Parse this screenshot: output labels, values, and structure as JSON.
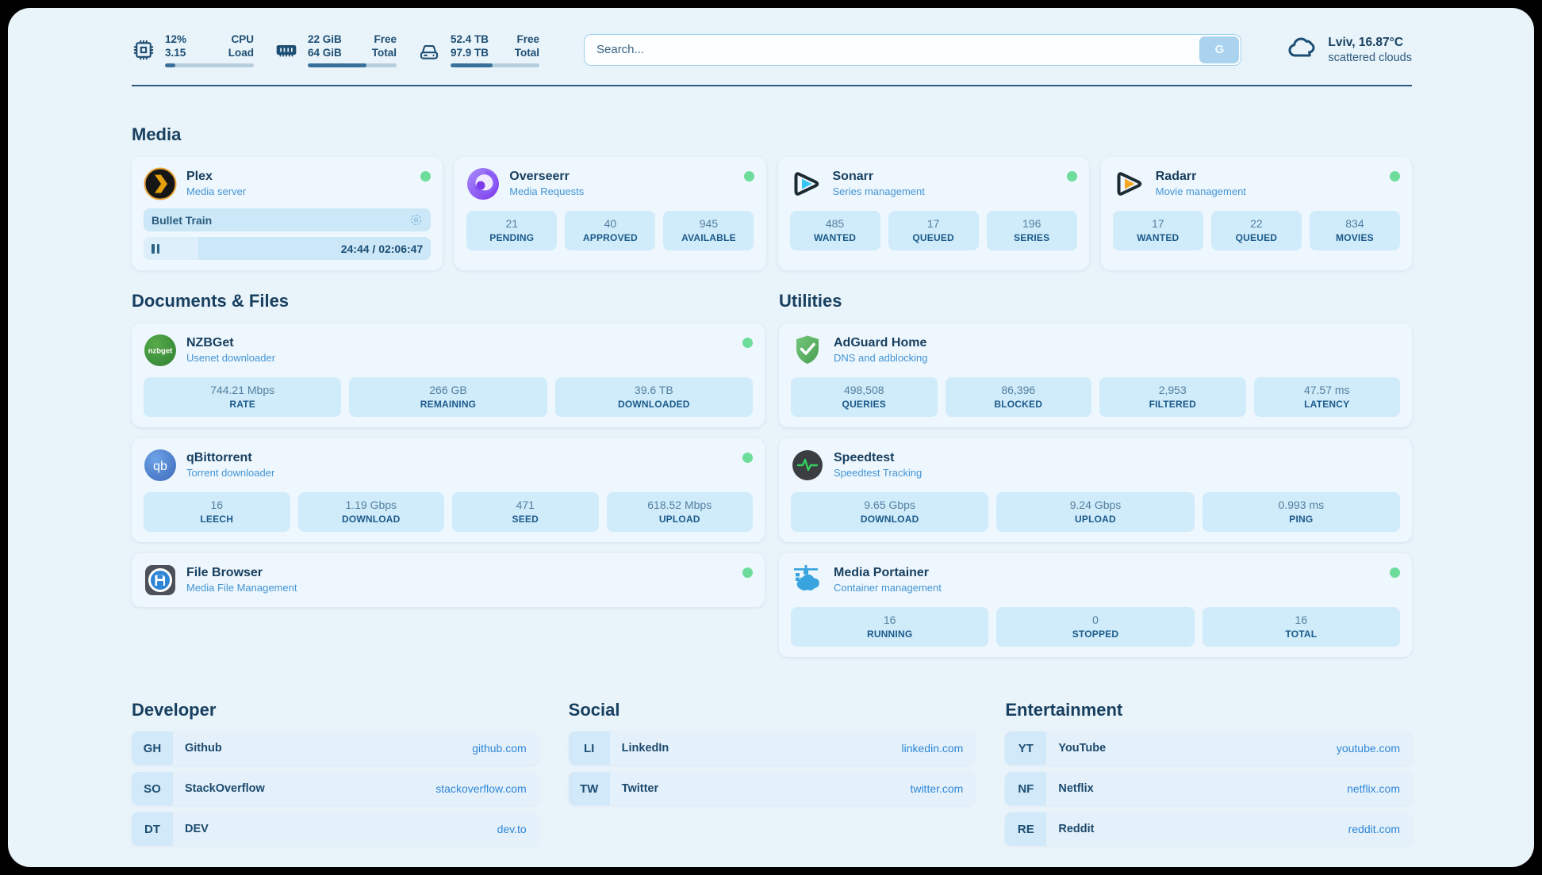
{
  "topbar": {
    "metrics": [
      {
        "icon": "cpu-icon",
        "values": [
          "12%",
          "3.15"
        ],
        "labels": [
          "CPU",
          "Load"
        ],
        "progress_pct": 12
      },
      {
        "icon": "ram-icon",
        "values": [
          "22 GiB",
          "64 GiB"
        ],
        "labels": [
          "Free",
          "Total"
        ],
        "progress_pct": 66
      },
      {
        "icon": "disk-icon",
        "values": [
          "52.4 TB",
          "97.9 TB"
        ],
        "labels": [
          "Free",
          "Total"
        ],
        "progress_pct": 47
      }
    ],
    "search": {
      "placeholder": "Search...",
      "button_label": "G"
    },
    "weather": {
      "location": "Lviv, 16.87°C",
      "condition": "scattered clouds"
    }
  },
  "sections": {
    "media": {
      "title": "Media",
      "apps": {
        "plex": {
          "name": "Plex",
          "subtitle": "Media server",
          "status": "online",
          "now_playing": "Bullet Train",
          "time_display": "24:44 / 02:06:47",
          "progress_pct": 19
        },
        "overseerr": {
          "name": "Overseerr",
          "subtitle": "Media Requests",
          "status": "online",
          "stats": [
            {
              "value": "21",
              "label": "PENDING"
            },
            {
              "value": "40",
              "label": "APPROVED"
            },
            {
              "value": "945",
              "label": "AVAILABLE"
            }
          ]
        },
        "sonarr": {
          "name": "Sonarr",
          "subtitle": "Series management",
          "status": "online",
          "stats": [
            {
              "value": "485",
              "label": "WANTED"
            },
            {
              "value": "17",
              "label": "QUEUED"
            },
            {
              "value": "196",
              "label": "SERIES"
            }
          ]
        },
        "radarr": {
          "name": "Radarr",
          "subtitle": "Movie management",
          "status": "online",
          "stats": [
            {
              "value": "17",
              "label": "WANTED"
            },
            {
              "value": "22",
              "label": "QUEUED"
            },
            {
              "value": "834",
              "label": "MOVIES"
            }
          ]
        }
      }
    },
    "documents": {
      "title": "Documents & Files",
      "apps": {
        "nzbget": {
          "name": "NZBGet",
          "subtitle": "Usenet downloader",
          "status": "online",
          "stats": [
            {
              "value": "744.21 Mbps",
              "label": "RATE"
            },
            {
              "value": "266 GB",
              "label": "REMAINING"
            },
            {
              "value": "39.6 TB",
              "label": "DOWNLOADED"
            }
          ]
        },
        "qbittorrent": {
          "name": "qBittorrent",
          "subtitle": "Torrent downloader",
          "status": "online",
          "stats": [
            {
              "value": "16",
              "label": "LEECH"
            },
            {
              "value": "1.19 Gbps",
              "label": "DOWNLOAD"
            },
            {
              "value": "471",
              "label": "SEED"
            },
            {
              "value": "618.52 Mbps",
              "label": "UPLOAD"
            }
          ]
        },
        "filebrowser": {
          "name": "File Browser",
          "subtitle": "Media File Management",
          "status": "online"
        }
      }
    },
    "utilities": {
      "title": "Utilities",
      "apps": {
        "adguard": {
          "name": "AdGuard Home",
          "subtitle": "DNS and adblocking",
          "stats": [
            {
              "value": "498,508",
              "label": "QUERIES"
            },
            {
              "value": "86,396",
              "label": "BLOCKED"
            },
            {
              "value": "2,953",
              "label": "FILTERED"
            },
            {
              "value": "47.57 ms",
              "label": "LATENCY"
            }
          ]
        },
        "speedtest": {
          "name": "Speedtest",
          "subtitle": "Speedtest Tracking",
          "stats": [
            {
              "value": "9.65 Gbps",
              "label": "DOWNLOAD"
            },
            {
              "value": "9.24 Gbps",
              "label": "UPLOAD"
            },
            {
              "value": "0.993 ms",
              "label": "PING"
            }
          ]
        },
        "portainer": {
          "name": "Media Portainer",
          "subtitle": "Container management",
          "status": "online",
          "stats": [
            {
              "value": "16",
              "label": "RUNNING"
            },
            {
              "value": "0",
              "label": "STOPPED"
            },
            {
              "value": "16",
              "label": "TOTAL"
            }
          ]
        }
      }
    },
    "bookmarks": [
      {
        "title": "Developer",
        "items": [
          {
            "abbr": "GH",
            "name": "Github",
            "url": "github.com"
          },
          {
            "abbr": "SO",
            "name": "StackOverflow",
            "url": "stackoverflow.com"
          },
          {
            "abbr": "DT",
            "name": "DEV",
            "url": "dev.to"
          }
        ]
      },
      {
        "title": "Social",
        "items": [
          {
            "abbr": "LI",
            "name": "LinkedIn",
            "url": "linkedin.com"
          },
          {
            "abbr": "TW",
            "name": "Twitter",
            "url": "twitter.com"
          }
        ]
      },
      {
        "title": "Entertainment",
        "items": [
          {
            "abbr": "YT",
            "name": "YouTube",
            "url": "youtube.com"
          },
          {
            "abbr": "NF",
            "name": "Netflix",
            "url": "netflix.com"
          },
          {
            "abbr": "RE",
            "name": "Reddit",
            "url": "reddit.com"
          }
        ]
      }
    ]
  },
  "colors": {
    "accent": "#2f86d6",
    "status_online": "#6edc9b",
    "panel_bg": "#e9f3fa",
    "card_bg": "#eef7fd",
    "stat_bg": "#d0ebfa",
    "text_dark": "#173f5f",
    "subtitle_blue": "#4494d4"
  }
}
